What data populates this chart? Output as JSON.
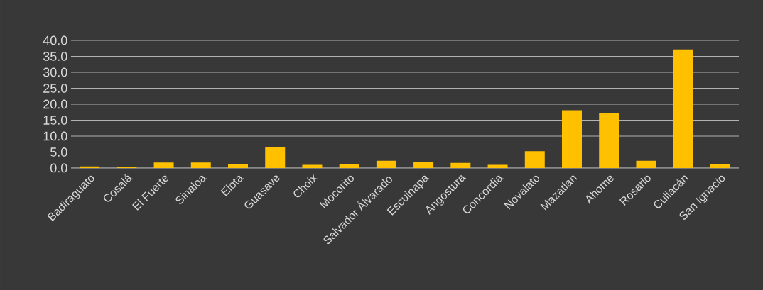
{
  "chart_data": {
    "type": "bar",
    "categories": [
      "Badiraguato",
      "Cosalá",
      "El Fuerte",
      "Sinaloa",
      "Elota",
      "Guasave",
      "Choix",
      "Mocorito",
      "Salvador Álvarado",
      "Escuinapa",
      "Angostura",
      "Concordia",
      "Novalato",
      "Mazatlan",
      "Ahome",
      "Rosario",
      "Culiacán",
      "San Ignacio"
    ],
    "values": [
      0.5,
      0.3,
      1.7,
      1.7,
      1.2,
      6.5,
      1.0,
      1.2,
      2.3,
      1.9,
      1.6,
      1.0,
      5.3,
      18.1,
      17.2,
      2.3,
      37.2,
      1.2
    ],
    "color": "#ffc000",
    "ylim": [
      0,
      40
    ],
    "yticks": [
      {
        "value": 0,
        "label": "0.0"
      },
      {
        "value": 5,
        "label": "5.0"
      },
      {
        "value": 10,
        "label": "10.0"
      },
      {
        "value": 15,
        "label": "15.0"
      },
      {
        "value": 20,
        "label": "20.0"
      },
      {
        "value": 25,
        "label": "25.0"
      },
      {
        "value": 30,
        "label": "30.0"
      },
      {
        "value": 35,
        "label": "35.0"
      },
      {
        "value": 40,
        "label": "40.0"
      }
    ],
    "grid": "y"
  }
}
